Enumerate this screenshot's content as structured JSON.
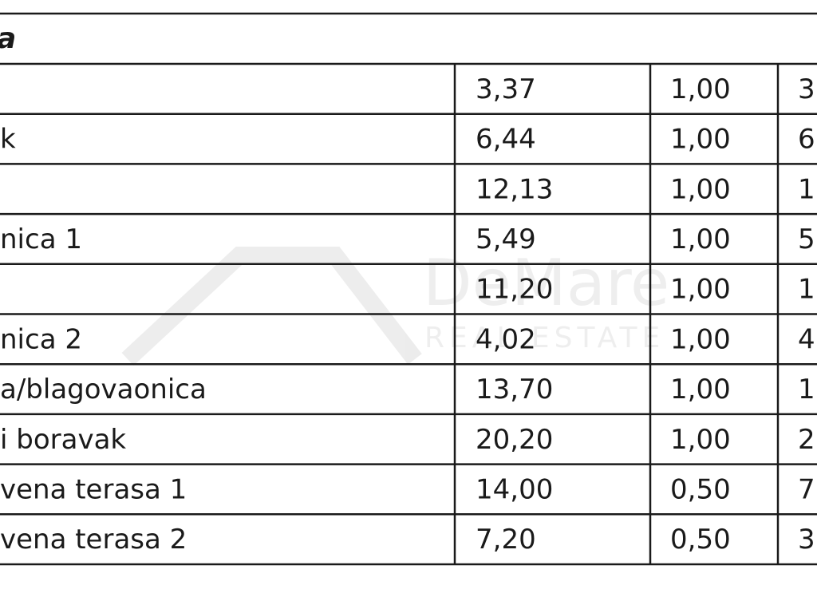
{
  "table": {
    "header": "a",
    "rows": [
      [
        null,
        "3,37",
        "1,00",
        "3"
      ],
      [
        "k",
        "6,44",
        "1,00",
        "6"
      ],
      [
        null,
        "12,13",
        "1,00",
        "1"
      ],
      [
        "nica 1",
        "5,49",
        "1,00",
        "5"
      ],
      [
        null,
        "11,20",
        "1,00",
        "1"
      ],
      [
        "nica 2",
        "4,02",
        "1,00",
        "4"
      ],
      [
        "a/blagovaonica",
        "13,70",
        "1,00",
        "1"
      ],
      [
        "i boravak",
        "20,20",
        "1,00",
        "2"
      ],
      [
        "vena terasa 1",
        "14,00",
        "0,50",
        "7"
      ],
      [
        "vena terasa 2",
        "7,20",
        "0,50",
        "3"
      ]
    ]
  },
  "watermark": {
    "name": "DeMare",
    "tagline": "REAL ESTATE"
  }
}
